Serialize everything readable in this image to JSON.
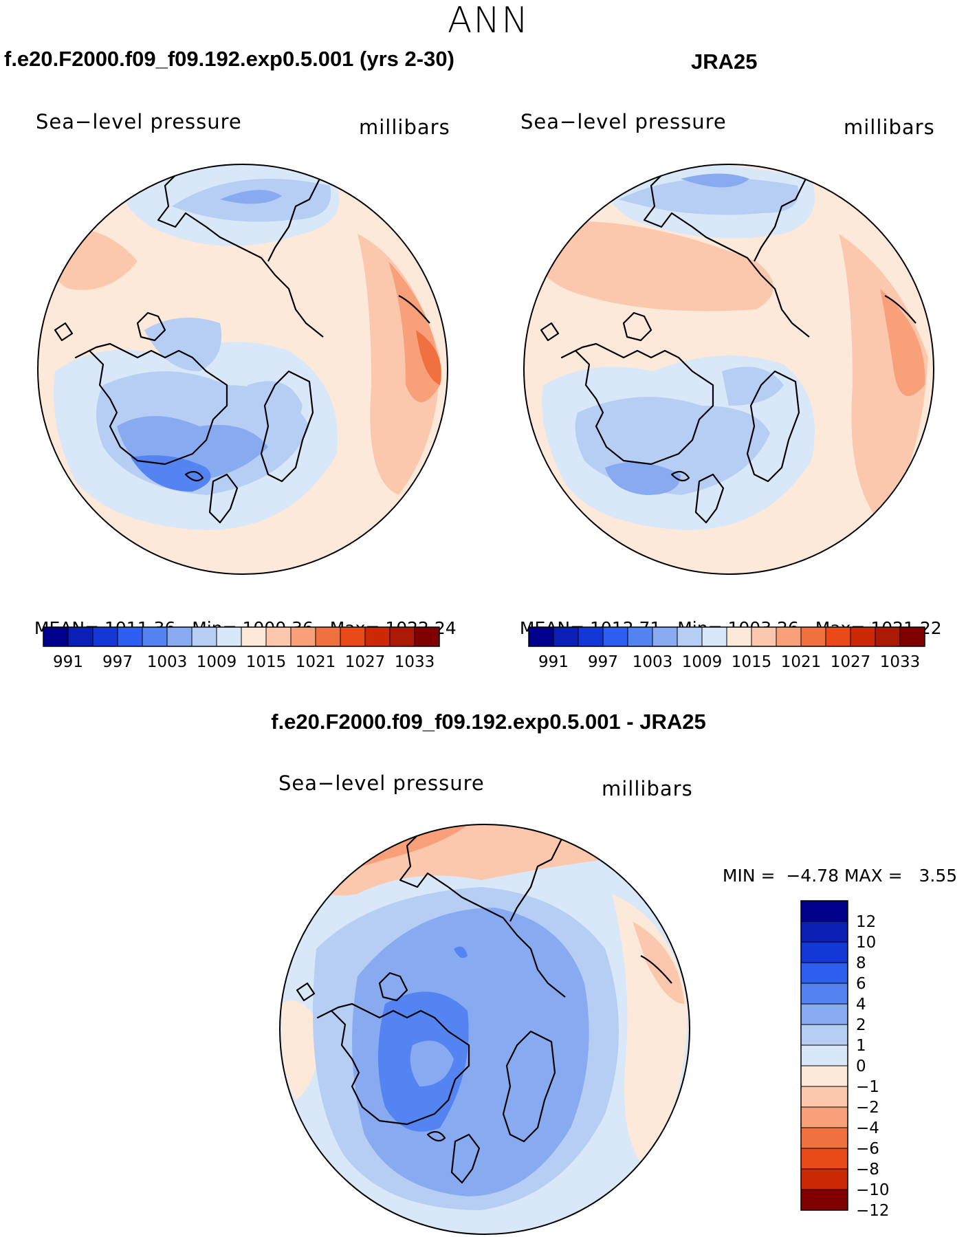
{
  "page_title": "ANN",
  "panels": [
    {
      "case_title": "f.e20.F2000.f09_f09.192.exp0.5.001 (yrs 2-30)",
      "variable": "Sea−level pressure",
      "units": "millibars",
      "stats": {
        "mean_label": "MEAN=",
        "mean": "1011.36",
        "min_label": "Min=",
        "min": "1000.36",
        "max_label": "Max=",
        "max": "1022.24"
      }
    },
    {
      "case_title": "JRA25",
      "variable": "Sea−level pressure",
      "units": "millibars",
      "stats": {
        "mean_label": "MEAN=",
        "mean": "1012.71",
        "min_label": "Min=",
        "min": "1003.26",
        "max_label": "Max=",
        "max": "1021.22"
      }
    },
    {
      "case_title": "f.e20.F2000.f09_f09.192.exp0.5.001 - JRA25",
      "variable": "Sea−level pressure",
      "units": "millibars",
      "stats": {
        "min_label": "MIN =",
        "min": "−4.78",
        "max_label": "MAX =",
        "max": "3.55"
      }
    }
  ],
  "colorbar_abs": {
    "colors": [
      "#00008b",
      "#0a1fb4",
      "#1438d6",
      "#2d5ef0",
      "#5384f2",
      "#88aaf0",
      "#b6cdf4",
      "#d9e8f8",
      "#fde9da",
      "#fbc8ad",
      "#f7a07a",
      "#f0703f",
      "#e84a18",
      "#cc2a06",
      "#aa1a05",
      "#800000"
    ],
    "labels": [
      "991",
      "997",
      "1003",
      "1009",
      "1015",
      "1021",
      "1027",
      "1033"
    ]
  },
  "colorbar_diff": {
    "colors": [
      "#00008b",
      "#0a1fb4",
      "#1438d6",
      "#2d5ef0",
      "#5384f2",
      "#88aaf0",
      "#b6cdf4",
      "#d9e8f8",
      "#fde9da",
      "#fbc8ad",
      "#f7a07a",
      "#f0703f",
      "#e84a18",
      "#cc2a06",
      "#800000"
    ],
    "labels": [
      "12",
      "10",
      "8",
      "6",
      "4",
      "2",
      "1",
      "0",
      "−1",
      "−2",
      "−4",
      "−6",
      "−8",
      "−10",
      "−12"
    ]
  }
}
